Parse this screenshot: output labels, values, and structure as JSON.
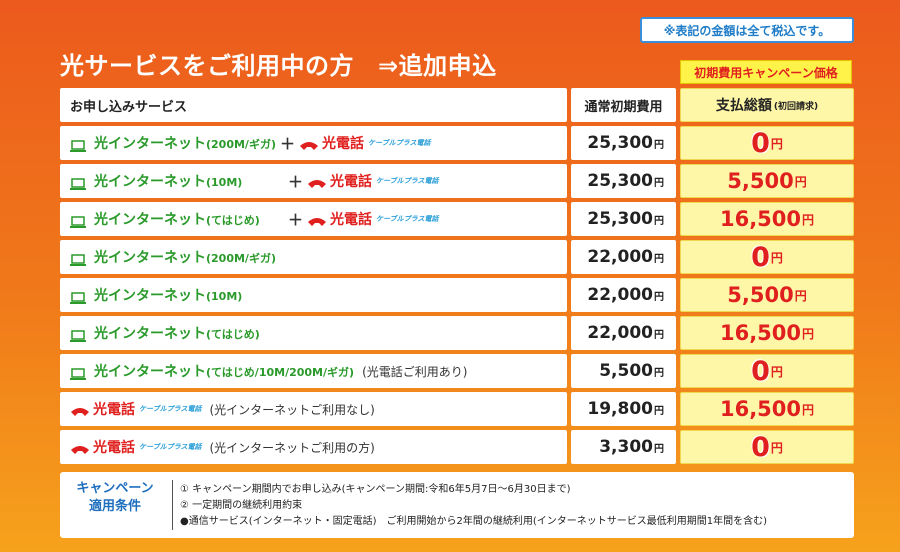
{
  "tax_note": "※表記の金額は全て税込です。",
  "title": "光サービスをご利用中の方",
  "title_arrow": "⇒追加申込",
  "campaign_label": "初期費用キャンペーン価格",
  "headers": {
    "service": "お申し込みサービス",
    "normal": "通常初期費用",
    "total": "支払総額",
    "total_sub": "(初回請求)"
  },
  "yen": "円",
  "plus": "＋",
  "phone_name": "光電話",
  "cable_brand": "ケーブルプラス電話",
  "rows": [
    {
      "net": "光インターネット",
      "net_paren": "(200M/ギガ)",
      "note": "",
      "normal": "25,300",
      "total": "0"
    },
    {
      "net": "光インターネット",
      "net_paren": "(10M)",
      "note": "",
      "normal": "25,300",
      "total": "5,500"
    },
    {
      "net": "光インターネット",
      "net_paren": "(てはじめ)",
      "note": "",
      "normal": "25,300",
      "total": "16,500"
    },
    {
      "net": "光インターネット",
      "net_paren": "(200M/ギガ)",
      "note": "",
      "normal": "22,000",
      "total": "0"
    },
    {
      "net": "光インターネット",
      "net_paren": "(10M)",
      "note": "",
      "normal": "22,000",
      "total": "5,500"
    },
    {
      "net": "光インターネット",
      "net_paren": "(てはじめ)",
      "note": "",
      "normal": "22,000",
      "total": "16,500"
    },
    {
      "net": "光インターネット",
      "net_paren": "(てはじめ/10M/200M/ギガ)",
      "note": "(光電話ご利用あり)",
      "normal": "5,500",
      "total": "0"
    },
    {
      "net": "",
      "net_paren": "",
      "note": "(光インターネットご利用なし)",
      "normal": "19,800",
      "total": "16,500"
    },
    {
      "net": "",
      "net_paren": "",
      "note": "(光インターネットご利用の方)",
      "normal": "3,300",
      "total": "0"
    }
  ],
  "conditions": {
    "label_line1": "キャンペーン",
    "label_line2": "適用条件",
    "items": [
      "① キャンペーン期間内でお申し込み(キャンペーン期間:令和6年5月7日～6月30日まで)",
      "② 一定期間の継続利用約束",
      "●通信サービス(インターネット・固定電話)　ご利用開始から2年間の継続利用(インターネットサービス最低利用期間1年間を含む)"
    ]
  },
  "colors": {
    "net_green": "#2a9a2a",
    "phone_red": "#e0201e",
    "accent_blue": "#1f7cc8",
    "price_yellow": "#fff7a8"
  }
}
